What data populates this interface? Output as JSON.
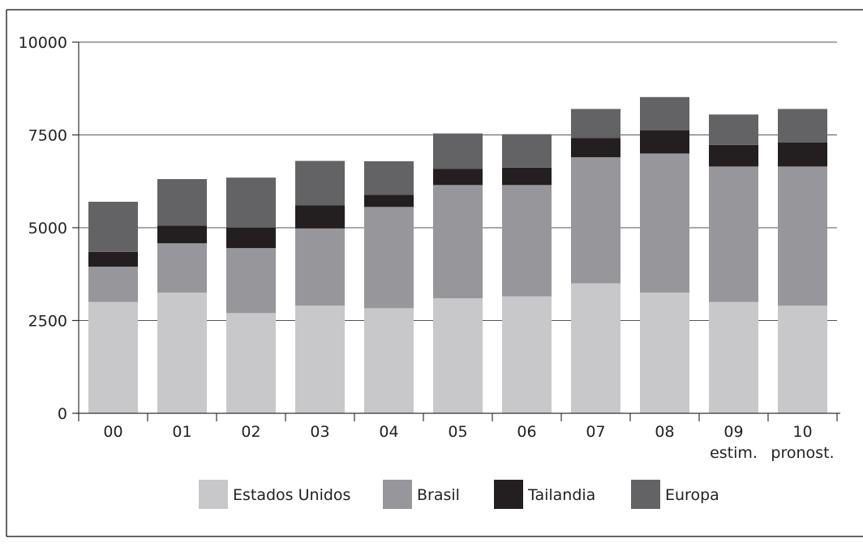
{
  "chart_data": {
    "type": "bar",
    "stacked": true,
    "categories": [
      "00",
      "01",
      "02",
      "03",
      "04",
      "05",
      "06",
      "07",
      "08",
      "09",
      "10"
    ],
    "category_sublabels": [
      "",
      "",
      "",
      "",
      "",
      "",
      "",
      "",
      "",
      "estim.",
      "pronost."
    ],
    "ylim": [
      0,
      10000
    ],
    "yticks": [
      0,
      2500,
      5000,
      7500,
      10000
    ],
    "ytick_labels": [
      "0",
      "2500",
      "5000",
      "7500",
      "10000"
    ],
    "grid": true,
    "legend_position": "bottom",
    "series": [
      {
        "name": "Estados Unidos",
        "color": "#c8c8ca",
        "values": [
          3000,
          3250,
          2700,
          2900,
          2830,
          3100,
          3150,
          3500,
          3250,
          3000,
          2900
        ]
      },
      {
        "name": "Brasil",
        "color": "#97979b",
        "values": [
          950,
          1330,
          1750,
          2080,
          2730,
          3050,
          3000,
          3400,
          3750,
          3650,
          3750
        ]
      },
      {
        "name": "Tailandia",
        "color": "#231f20",
        "values": [
          400,
          480,
          550,
          620,
          330,
          440,
          470,
          520,
          620,
          580,
          650
        ]
      },
      {
        "name": "Europa",
        "color": "#636365",
        "values": [
          1350,
          1250,
          1350,
          1200,
          900,
          950,
          900,
          780,
          900,
          820,
          900
        ]
      }
    ]
  }
}
